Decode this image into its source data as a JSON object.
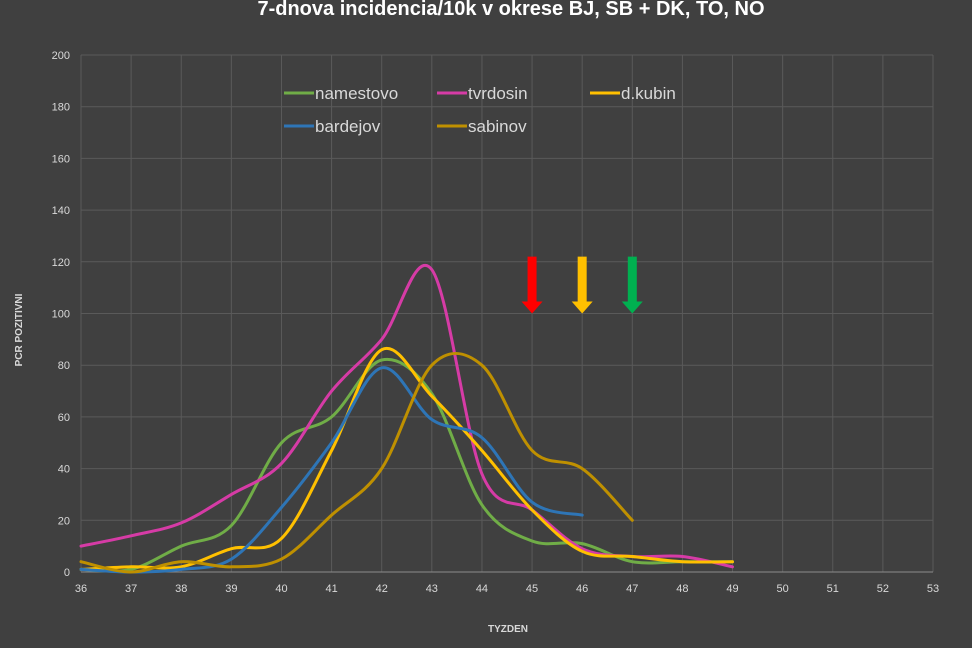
{
  "chart_data": {
    "type": "line",
    "title": "7-dnova incidencia/10k v okrese BJ, SB + DK, TO, NO",
    "xlabel": "TYZDEN",
    "ylabel": "PCR POZITIVNI",
    "xlim": [
      36,
      53
    ],
    "ylim": [
      0,
      200
    ],
    "x_ticks": [
      "36",
      "37",
      "38",
      "39",
      "40",
      "41",
      "42",
      "43",
      "44",
      "45",
      "46",
      "47",
      "48",
      "49",
      "50",
      "51",
      "52",
      "53"
    ],
    "y_ticks": [
      "0",
      "20",
      "40",
      "60",
      "80",
      "100",
      "120",
      "140",
      "160",
      "180",
      "200"
    ],
    "grid": true,
    "legend_position": "top",
    "series": [
      {
        "name": "namestovo",
        "color": "#70ad47",
        "x": [
          36,
          37,
          38,
          39,
          40,
          41,
          42,
          43,
          44,
          45,
          46,
          47,
          48,
          49
        ],
        "y": [
          1,
          1,
          10,
          18,
          50,
          60,
          82,
          69,
          26,
          12,
          11,
          4,
          4,
          4
        ]
      },
      {
        "name": "tvrdosin",
        "color": "#d63ba6",
        "x": [
          36,
          37,
          38,
          39,
          40,
          41,
          42,
          43,
          44,
          45,
          46,
          47,
          48,
          49
        ],
        "y": [
          10,
          14,
          19,
          30,
          42,
          70,
          90,
          117,
          38,
          24,
          9,
          6,
          6,
          2
        ]
      },
      {
        "name": "d.kubin",
        "color": "#ffc000",
        "x": [
          36,
          37,
          38,
          39,
          40,
          41,
          42,
          43,
          44,
          45,
          46,
          47,
          48,
          49
        ],
        "y": [
          1,
          2,
          2,
          9,
          13,
          47,
          86,
          68,
          47,
          24,
          8,
          6,
          4,
          4
        ]
      },
      {
        "name": "bardejov",
        "color": "#2e75b6",
        "x": [
          36,
          37,
          38,
          39,
          40,
          41,
          42,
          43,
          44,
          45,
          46
        ],
        "y": [
          1,
          0,
          1,
          5,
          25,
          50,
          79,
          59,
          52,
          27,
          22
        ]
      },
      {
        "name": "sabinov",
        "color": "#bf9000",
        "x": [
          36,
          37,
          38,
          39,
          40,
          41,
          42,
          43,
          44,
          45,
          46,
          47
        ],
        "y": [
          4,
          0,
          4,
          2,
          5,
          22,
          40,
          80,
          80,
          47,
          40,
          20
        ]
      }
    ],
    "annotations": [
      {
        "type": "arrow-down",
        "color": "#ff0000",
        "x": 45,
        "y_top": 122,
        "y_bottom": 100
      },
      {
        "type": "arrow-down",
        "color": "#ffc000",
        "x": 46,
        "y_top": 122,
        "y_bottom": 100
      },
      {
        "type": "arrow-down",
        "color": "#00b050",
        "x": 47,
        "y_top": 122,
        "y_bottom": 100
      }
    ]
  }
}
